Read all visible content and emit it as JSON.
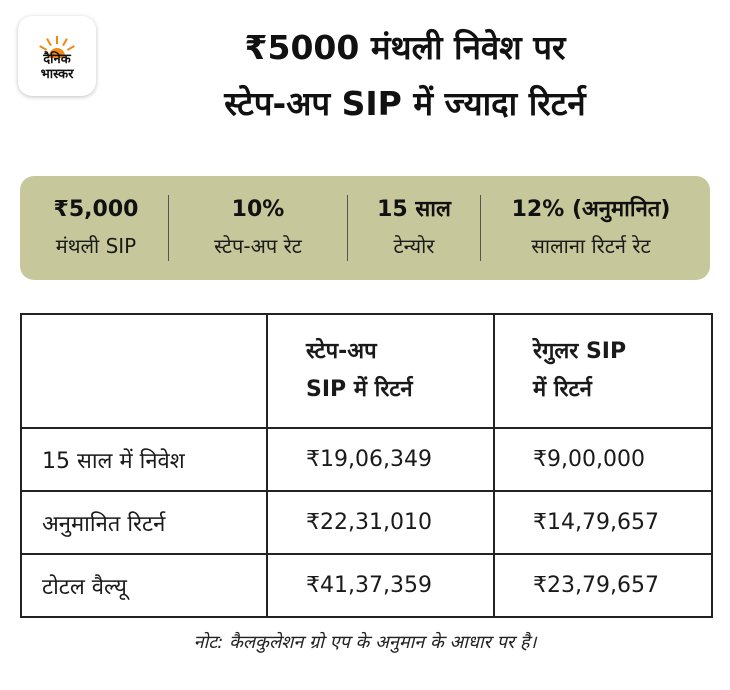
{
  "logo": {
    "line1": "दैनिक",
    "line2": "भास्कर",
    "color": "#f08a12"
  },
  "title": {
    "line1": "₹5000 मंथली निवेश पर",
    "line2": "स्टेप-अप SIP में ज्यादा रिटर्न"
  },
  "summary": [
    {
      "value": "₹5,000",
      "label": "मंथली SIP"
    },
    {
      "value": "10%",
      "label": "स्टेप-अप रेट"
    },
    {
      "value": "15 साल",
      "label": "टेन्योर"
    },
    {
      "value": "12% (अनुमानित)",
      "label": "सालाना रिटर्न रेट"
    }
  ],
  "summary_bg": "#c6c79a",
  "table": {
    "headers": [
      "",
      "स्टेप-अप\nSIP में रिटर्न",
      "रेगुलर SIP\nमें रिटर्न"
    ],
    "header_lines": {
      "col2": [
        "स्टेप-अप",
        "SIP में रिटर्न"
      ],
      "col3": [
        "रेगुलर SIP",
        "में रिटर्न"
      ]
    },
    "rows": [
      [
        "15 साल में निवेश",
        "₹19,06,349",
        "₹9,00,000"
      ],
      [
        "अनुमानित रिटर्न",
        "₹22,31,010",
        "₹14,79,657"
      ],
      [
        "टोटल वैल्यू",
        "₹41,37,359",
        "₹23,79,657"
      ]
    ]
  },
  "note": "नोट: कैलकुलेशन ग्रो एप के अनुमान के आधार पर है।"
}
